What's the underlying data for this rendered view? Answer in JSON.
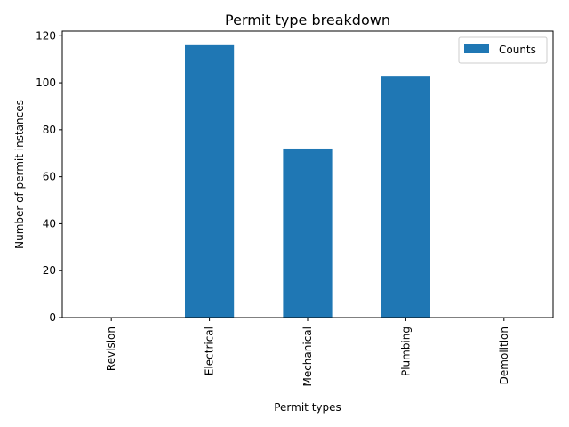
{
  "chart_data": {
    "type": "bar",
    "title": "Permit type breakdown",
    "xlabel": "Permit types",
    "ylabel": "Number of permit instances",
    "categories": [
      "Revision",
      "Electrical",
      "Mechanical",
      "Plumbing",
      "Demolition"
    ],
    "series": [
      {
        "name": "Counts",
        "values": [
          0,
          116,
          72,
          103,
          0
        ],
        "color": "#1f77b4"
      }
    ],
    "ylim": [
      0,
      122
    ],
    "yticks": [
      0,
      20,
      40,
      60,
      80,
      100,
      120
    ],
    "grid": false,
    "legend_position": "top-right"
  }
}
